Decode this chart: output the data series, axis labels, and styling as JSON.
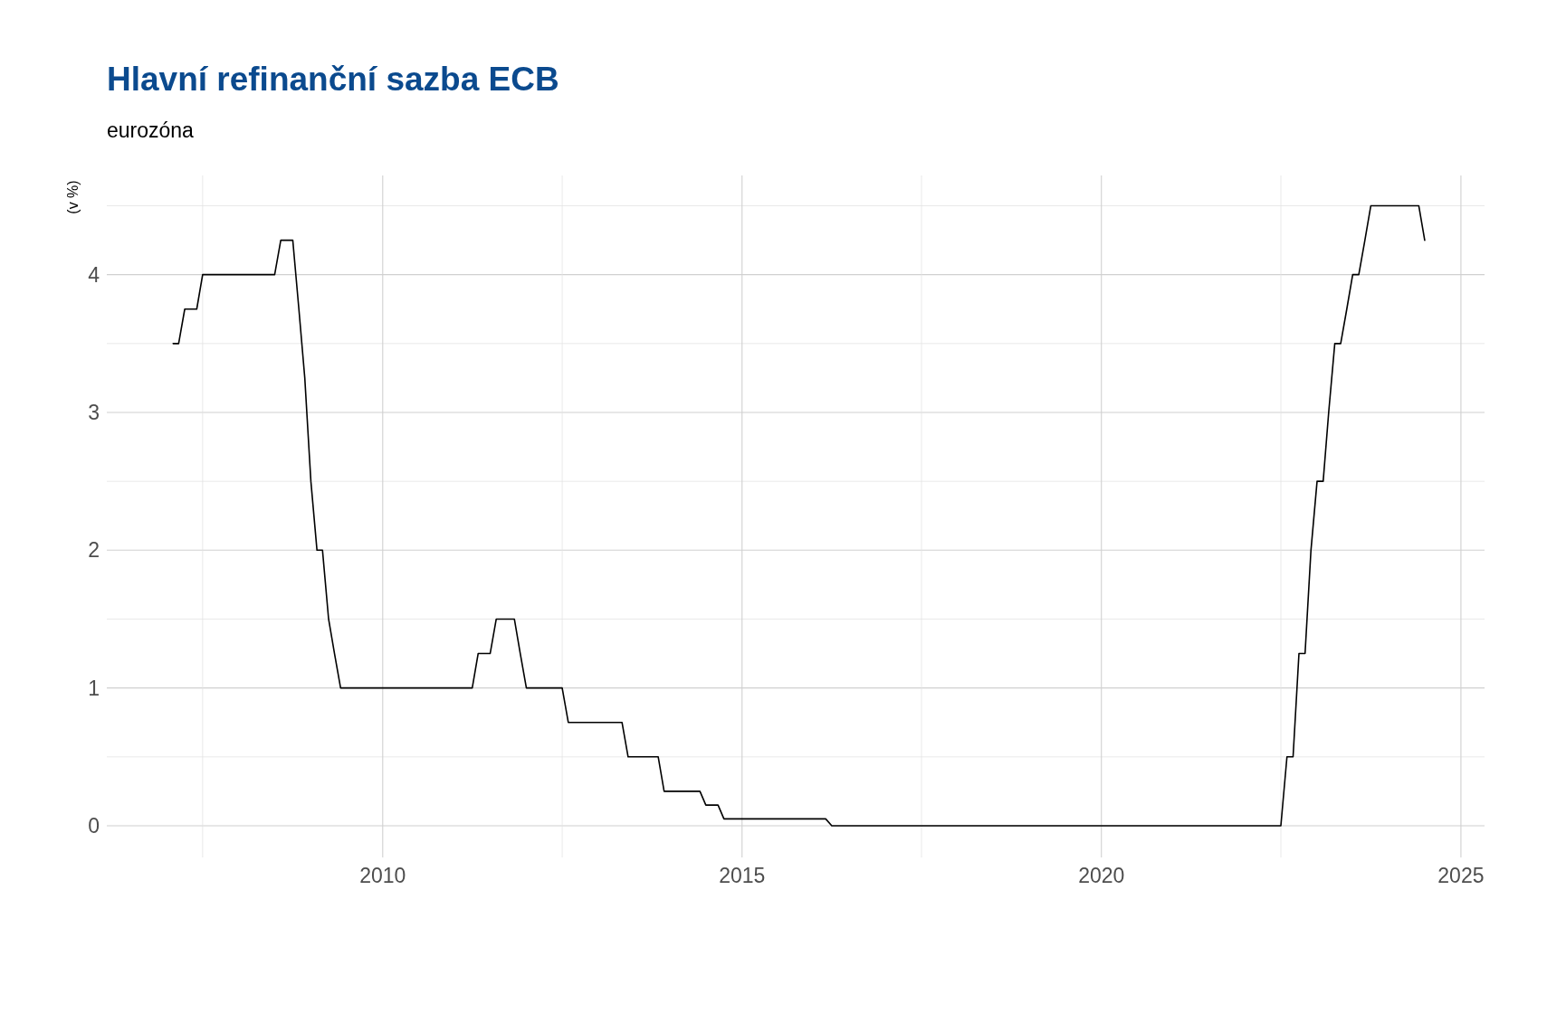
{
  "chart_data": {
    "type": "line",
    "title": "Hlavní refinanční sazba ECB",
    "subtitle": "eurozóna",
    "ylabel": "(v %)",
    "x": [
      "2007-02",
      "2007-03",
      "2007-04",
      "2007-06",
      "2007-07",
      "2008-07",
      "2008-08",
      "2008-10",
      "2008-11",
      "2008-12",
      "2009-01",
      "2009-02",
      "2009-03",
      "2009-04",
      "2009-05",
      "2009-06",
      "2011-04",
      "2011-05",
      "2011-07",
      "2011-08",
      "2011-11",
      "2011-12",
      "2012-01",
      "2012-07",
      "2012-08",
      "2013-05",
      "2013-06",
      "2013-11",
      "2013-12",
      "2014-06",
      "2014-07",
      "2014-09",
      "2014-10",
      "2016-03",
      "2016-04",
      "2022-07",
      "2022-08",
      "2022-09",
      "2022-10",
      "2022-11",
      "2022-12",
      "2023-01",
      "2023-02",
      "2023-03",
      "2023-04",
      "2023-05",
      "2023-06",
      "2023-07",
      "2023-08",
      "2023-09",
      "2023-10",
      "2024-06",
      "2024-07"
    ],
    "series": [
      {
        "color": "#000000",
        "values": [
          3.5,
          3.5,
          3.75,
          3.75,
          4.0,
          4.0,
          4.25,
          4.25,
          3.75,
          3.25,
          2.5,
          2.0,
          2.0,
          1.5,
          1.25,
          1.0,
          1.0,
          1.25,
          1.25,
          1.5,
          1.5,
          1.25,
          1.0,
          1.0,
          0.75,
          0.75,
          0.5,
          0.5,
          0.25,
          0.25,
          0.15,
          0.15,
          0.05,
          0.05,
          0.0,
          0.0,
          0.5,
          0.5,
          1.25,
          1.25,
          2.0,
          2.5,
          2.5,
          3.0,
          3.5,
          3.5,
          3.75,
          4.0,
          4.0,
          4.25,
          4.5,
          4.5,
          4.25
        ]
      }
    ],
    "xlim": [
      "2006-03",
      "2025-05"
    ],
    "xticks": [
      {
        "value": "2007-07",
        "label": null
      },
      {
        "value": "2010",
        "label": "2010"
      },
      {
        "value": "2012-07",
        "label": null
      },
      {
        "value": "2015",
        "label": "2015"
      },
      {
        "value": "2017-07",
        "label": null
      },
      {
        "value": "2020",
        "label": "2020"
      },
      {
        "value": "2022-07",
        "label": null
      },
      {
        "value": "2025",
        "label": "2025"
      }
    ],
    "ylim": [
      -0.23,
      4.72
    ],
    "yticks": [
      0,
      {
        "value": 0.5,
        "label": null
      },
      1,
      {
        "value": 1.5,
        "label": null
      },
      2,
      {
        "value": 2.5,
        "label": null
      },
      3,
      {
        "value": 3.5,
        "label": null
      },
      4,
      {
        "value": 4.5,
        "label": null
      }
    ],
    "grid": true,
    "marker": "none",
    "line_style": "solid"
  }
}
